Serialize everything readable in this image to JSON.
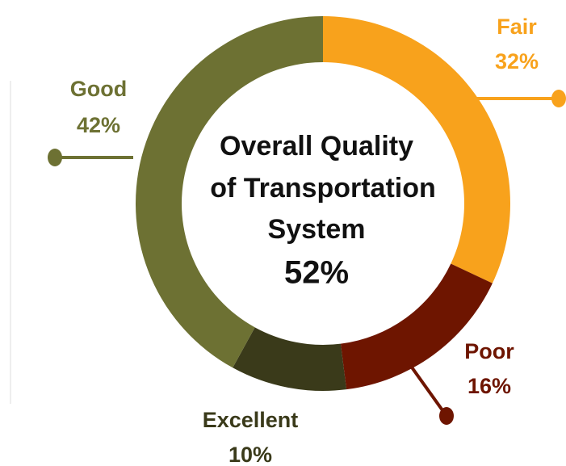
{
  "chart_data": {
    "type": "donut",
    "title": [
      "Overall Quality",
      "of Transportation",
      "System"
    ],
    "center_label": "52%",
    "categories": [
      "Fair",
      "Poor",
      "Excellent",
      "Good"
    ],
    "values": [
      32,
      16,
      10,
      42
    ],
    "value_labels": [
      "32%",
      "16%",
      "10%",
      "42%"
    ],
    "colors": [
      "#f8a21c",
      "#6e1500",
      "#3a3a1a",
      "#6d7133"
    ]
  }
}
